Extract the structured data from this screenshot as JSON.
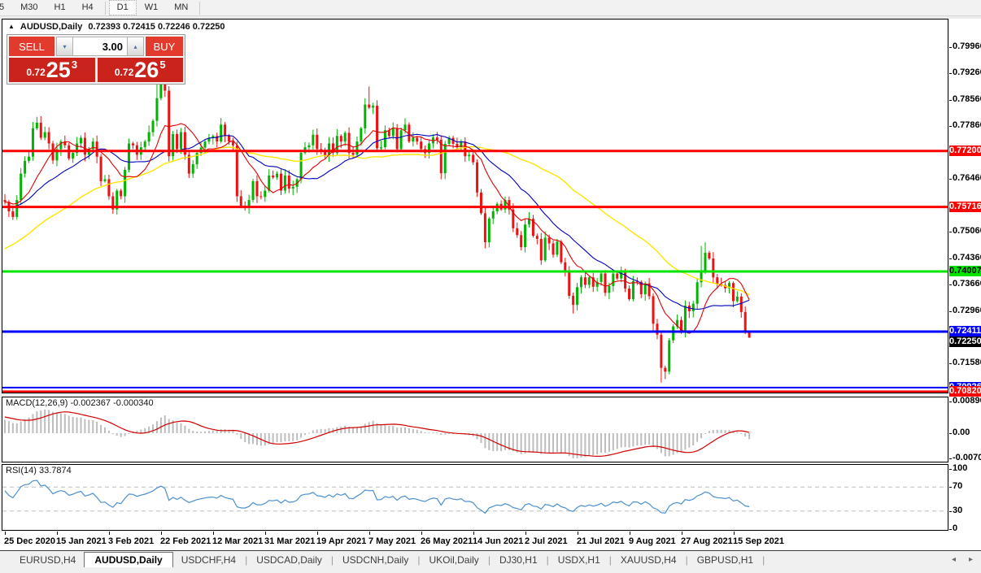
{
  "toolbar": {
    "timeframes": [
      "5",
      "M30",
      "H1",
      "H4",
      "D1",
      "W1",
      "MN"
    ],
    "active": "D1"
  },
  "chart_header": {
    "collapse_icon": "▲",
    "title": "AUDUSD,Daily",
    "ohlc": "0.72393 0.72415 0.72246 0.72250"
  },
  "trade_panel": {
    "sell_label": "SELL",
    "buy_label": "BUY",
    "volume": "3.00",
    "sell_price": {
      "prefix": "0.72",
      "big": "25",
      "sup": "3"
    },
    "buy_price": {
      "prefix": "0.72",
      "big": "26",
      "sup": "5"
    }
  },
  "macd_panel": {
    "label": "MACD(12,26,9) -0.002367 -0.000340"
  },
  "rsi_panel": {
    "label": "RSI(14) 33.7874"
  },
  "tabs": {
    "items": [
      "EURUSD,H4",
      "AUDUSD,Daily",
      "USDCHF,H4",
      "USDCAD,Daily",
      "USDCNH,Daily",
      "UKOil,Daily",
      "DJ30,H1",
      "USDX,H1",
      "XAUUSD,H4",
      "GBPUSD,H1"
    ],
    "active": "AUDUSD,Daily",
    "scroll_left_icon": "◂",
    "scroll_right_icon": "▸"
  },
  "chart_data": {
    "type": "candlestick",
    "symbol": "AUDUSD",
    "timeframe": "Daily",
    "last_bar": {
      "open": 0.72393,
      "high": 0.72415,
      "low": 0.72246,
      "close": 0.7225
    },
    "up_color": "#00b400",
    "down_color": "#ee1111",
    "price_ticks": [
      "0.79960",
      "0.79260",
      "0.78560",
      "0.77860",
      "0.76460",
      "0.75060",
      "0.74360",
      "0.73660",
      "0.72960",
      "0.71580"
    ],
    "levels": [
      {
        "price": 0.772,
        "label": "0.77200",
        "color": "#ff0000",
        "text": "#ffffff",
        "lw": 3
      },
      {
        "price": 0.75716,
        "label": "0.75716",
        "color": "#ff0000",
        "text": "#ffffff",
        "lw": 3
      },
      {
        "price": 0.74007,
        "label": "0.74007",
        "color": "#00e400",
        "text": "#000000",
        "lw": 3
      },
      {
        "price": 0.72411,
        "label": "0.72411",
        "color": "#0000ff",
        "text": "#ffffff",
        "lw": 3
      },
      {
        "price": 0.70926,
        "label": "0.70926",
        "color": "#0000ff",
        "text": "#ffffff",
        "lw": 2
      },
      {
        "price": 0.7082,
        "label": "0.70820",
        "color": "#ff0000",
        "text": "#ffffff",
        "lw": 3
      }
    ],
    "current_price": {
      "value": 0.7225,
      "label": "0.72250",
      "bg": "#000000",
      "text": "#ffffff"
    },
    "moving_averages": [
      {
        "period": 50,
        "color": "#ffe400",
        "name": "slow-ma"
      },
      {
        "period": 21,
        "color": "#0000bb",
        "name": "medium-ma"
      },
      {
        "period": 10,
        "color": "#e00000",
        "name": "fast-ma"
      }
    ],
    "warmup_closes": [
      0.718,
      0.72,
      0.719,
      0.722,
      0.7245,
      0.7235,
      0.726,
      0.7285,
      0.7275,
      0.73,
      0.732,
      0.731,
      0.7335,
      0.7355,
      0.7345,
      0.737,
      0.739,
      0.738,
      0.7405,
      0.7425,
      0.7415,
      0.736,
      0.733,
      0.735,
      0.737,
      0.74,
      0.743,
      0.742,
      0.745,
      0.747,
      0.746,
      0.74,
      0.742,
      0.75,
      0.753,
      0.752,
      0.7545,
      0.756,
      0.755,
      0.7565,
      0.7555,
      0.757,
      0.756,
      0.7575,
      0.7565,
      0.758,
      0.757,
      0.7585,
      0.7575,
      0.759,
      0.758,
      0.7595,
      0.7585,
      0.759,
      0.759
    ],
    "closes": [
      0.7585,
      0.756,
      0.7545,
      0.759,
      0.766,
      0.7694,
      0.7705,
      0.778,
      0.7795,
      0.7755,
      0.777,
      0.774,
      0.7695,
      0.7725,
      0.7745,
      0.7735,
      0.77,
      0.7715,
      0.774,
      0.7755,
      0.771,
      0.7725,
      0.7745,
      0.7705,
      0.764,
      0.7645,
      0.76,
      0.7565,
      0.7615,
      0.76,
      0.767,
      0.774,
      0.7735,
      0.771,
      0.773,
      0.7745,
      0.777,
      0.78,
      0.786,
      0.7905,
      0.788,
      0.7706,
      0.7765,
      0.7725,
      0.777,
      0.771,
      0.766,
      0.7685,
      0.7715,
      0.7729,
      0.7745,
      0.7755,
      0.776,
      0.7745,
      0.779,
      0.776,
      0.7745,
      0.7735,
      0.76,
      0.7575,
      0.757,
      0.759,
      0.764,
      0.76,
      0.7598,
      0.7615,
      0.7655,
      0.765,
      0.766,
      0.7615,
      0.7655,
      0.762,
      0.7625,
      0.7645,
      0.7715,
      0.773,
      0.7735,
      0.7763,
      0.7725,
      0.772,
      0.7707,
      0.774,
      0.7715,
      0.776,
      0.7745,
      0.7768,
      0.7715,
      0.771,
      0.7745,
      0.778,
      0.7843,
      0.7835,
      0.784,
      0.7727,
      0.773,
      0.7775,
      0.776,
      0.778,
      0.7725,
      0.7775,
      0.779,
      0.7745,
      0.7755,
      0.7745,
      0.7725,
      0.7715,
      0.774,
      0.7756,
      0.775,
      0.7661,
      0.7739,
      0.7755,
      0.7739,
      0.773,
      0.7745,
      0.7706,
      0.771,
      0.769,
      0.761,
      0.7555,
      0.7478,
      0.7541,
      0.756,
      0.758,
      0.7565,
      0.759,
      0.7565,
      0.7515,
      0.7497,
      0.7465,
      0.7525,
      0.754,
      0.7495,
      0.7487,
      0.743,
      0.749,
      0.7475,
      0.7445,
      0.748,
      0.7425,
      0.74,
      0.7336,
      0.7312,
      0.7359,
      0.7385,
      0.7365,
      0.7385,
      0.736,
      0.7373,
      0.7395,
      0.7344,
      0.7362,
      0.7395,
      0.7382,
      0.74,
      0.7355,
      0.7327,
      0.7375,
      0.7373,
      0.734,
      0.7369,
      0.7335,
      0.7262,
      0.7233,
      0.7145,
      0.7135,
      0.7218,
      0.7255,
      0.7272,
      0.724,
      0.731,
      0.7295,
      0.7315,
      0.7372,
      0.74,
      0.745,
      0.7435,
      0.7385,
      0.7368,
      0.7365,
      0.7356,
      0.737,
      0.7322,
      0.7334,
      0.7293,
      0.72393,
      0.7225
    ],
    "wick_overrides": {
      "38": {
        "high": 0.7912
      },
      "41": {
        "low": 0.7692
      },
      "58": {
        "low": 0.7585
      },
      "60": {
        "low": 0.7562
      },
      "90": {
        "high": 0.786
      },
      "91": {
        "high": 0.7891
      },
      "109": {
        "low": 0.7645
      },
      "118": {
        "low": 0.7598
      },
      "120": {
        "low": 0.7462
      },
      "142": {
        "low": 0.7289
      },
      "162": {
        "low": 0.724
      },
      "164": {
        "low": 0.7106
      },
      "165": {
        "low": 0.7115
      },
      "174": {
        "high": 0.7468
      },
      "175": {
        "high": 0.7478
      },
      "186": {
        "open": 0.72393,
        "high": 0.72415,
        "low": 0.72246,
        "close": 0.7225
      }
    },
    "macd": {
      "params": [
        12,
        26,
        9
      ],
      "main_value": -0.002367,
      "signal_value": -0.00034,
      "hist_color": "#bdbdbd",
      "signal_color": "#d00000",
      "ticks": [
        {
          "v": 0.008904,
          "label": "0.008904"
        },
        {
          "v": 0.0,
          "label": "0.00"
        },
        {
          "v": -0.007017,
          "label": "-0.007017"
        }
      ]
    },
    "rsi": {
      "period": 14,
      "last": 33.7874,
      "color": "#4a8fd0",
      "dashed_levels": [
        70,
        30
      ],
      "ticks": [
        {
          "v": 100,
          "label": "100"
        },
        {
          "v": 70,
          "label": "70"
        },
        {
          "v": 30,
          "label": "30"
        },
        {
          "v": 0,
          "label": "0"
        }
      ]
    },
    "date_labels": [
      "25 Dec 2020",
      "15 Jan 2021",
      "3 Feb 2021",
      "22 Feb 2021",
      "12 Mar 2021",
      "31 Mar 2021",
      "19 Apr 2021",
      "7 May 2021",
      "26 May 2021",
      "14 Jun 2021",
      "2 Jul 2021",
      "21 Jul 2021",
      "9 Aug 2021",
      "27 Aug 2021",
      "15 Sep 2021"
    ]
  }
}
